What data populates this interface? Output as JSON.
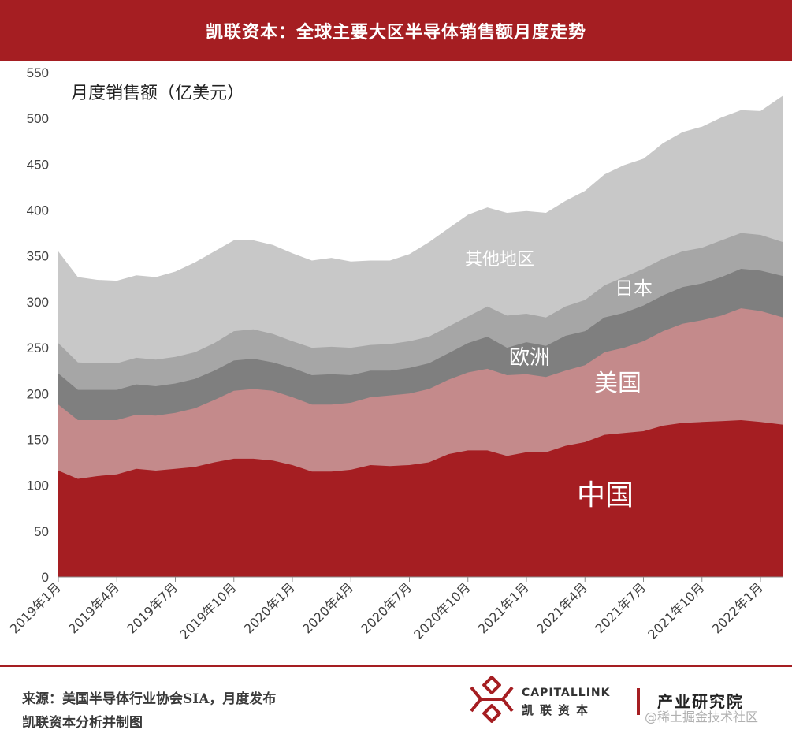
{
  "header": {
    "title": "凯联资本：全球主要大区半导体销售额月度走势"
  },
  "footer": {
    "source": "来源：美国半导体行业协会SIA，月度发布",
    "credit": "凯联资本分析并制图",
    "brand_en": "CAPITALLINK",
    "brand_cn": "凯联资本",
    "institute": "产业研究院",
    "watermark": "@稀土掘金技术社区"
  },
  "colors": {
    "header_bg": "#a51e22",
    "china": "#a51e22",
    "usa": "#c48a8b",
    "europe": "#7f7f7f",
    "japan": "#a6a6a6",
    "others": "#c8c8c8"
  },
  "chart_data": {
    "type": "area",
    "stacked": true,
    "title": "",
    "ylabel": "月度销售额（亿美元）",
    "xlabel": "",
    "ylim": [
      0,
      550
    ],
    "yticks": [
      0,
      50,
      100,
      150,
      200,
      250,
      300,
      350,
      400,
      450,
      500,
      550
    ],
    "tick_labels": [
      "2019年1月",
      "2019年4月",
      "2019年7月",
      "2019年10月",
      "2020年1月",
      "2020年4月",
      "2020年7月",
      "2020年10月",
      "2021年1月",
      "2021年4月",
      "2021年7月",
      "2021年10月",
      "2022年1月"
    ],
    "months": [
      "2019-01",
      "2019-02",
      "2019-03",
      "2019-04",
      "2019-05",
      "2019-06",
      "2019-07",
      "2019-08",
      "2019-09",
      "2019-10",
      "2019-11",
      "2019-12",
      "2020-01",
      "2020-02",
      "2020-03",
      "2020-04",
      "2020-05",
      "2020-06",
      "2020-07",
      "2020-08",
      "2020-09",
      "2020-10",
      "2020-11",
      "2020-12",
      "2021-01",
      "2021-02",
      "2021-03",
      "2021-04",
      "2021-05",
      "2021-06",
      "2021-07",
      "2021-08",
      "2021-09",
      "2021-10",
      "2021-11",
      "2021-12",
      "2022-01",
      "2022-02"
    ],
    "series": [
      {
        "name": "中国",
        "values": [
          116,
          107,
          110,
          112,
          118,
          116,
          118,
          120,
          125,
          129,
          129,
          127,
          122,
          115,
          115,
          117,
          122,
          121,
          122,
          125,
          134,
          138,
          138,
          132,
          136,
          136,
          143,
          147,
          155,
          157,
          159,
          165,
          168,
          169,
          170,
          171,
          169,
          166
        ]
      },
      {
        "name": "美国",
        "values": [
          188,
          171,
          171,
          171,
          177,
          176,
          179,
          184,
          193,
          203,
          205,
          203,
          196,
          188,
          188,
          190,
          196,
          198,
          200,
          205,
          215,
          223,
          227,
          220,
          221,
          218,
          225,
          231,
          245,
          250,
          257,
          268,
          276,
          280,
          285,
          293,
          290,
          283
        ]
      },
      {
        "name": "欧洲",
        "values": [
          222,
          204,
          204,
          204,
          210,
          208,
          211,
          216,
          225,
          236,
          238,
          234,
          228,
          220,
          221,
          220,
          225,
          225,
          228,
          233,
          244,
          255,
          262,
          250,
          256,
          252,
          263,
          268,
          283,
          288,
          296,
          307,
          316,
          320,
          327,
          336,
          334,
          328
        ]
      },
      {
        "name": "日本",
        "values": [
          255,
          234,
          233,
          233,
          239,
          237,
          240,
          245,
          255,
          268,
          270,
          265,
          257,
          250,
          251,
          250,
          253,
          254,
          257,
          262,
          273,
          284,
          295,
          285,
          287,
          283,
          295,
          302,
          318,
          327,
          336,
          347,
          355,
          359,
          367,
          375,
          373,
          365
        ]
      },
      {
        "name": "其他地区",
        "values": [
          355,
          327,
          324,
          323,
          329,
          327,
          333,
          343,
          355,
          367,
          367,
          362,
          353,
          345,
          348,
          344,
          345,
          345,
          352,
          365,
          380,
          395,
          403,
          397,
          399,
          397,
          410,
          421,
          439,
          449,
          456,
          473,
          485,
          491,
          501,
          509,
          508,
          525
        ]
      }
    ]
  }
}
